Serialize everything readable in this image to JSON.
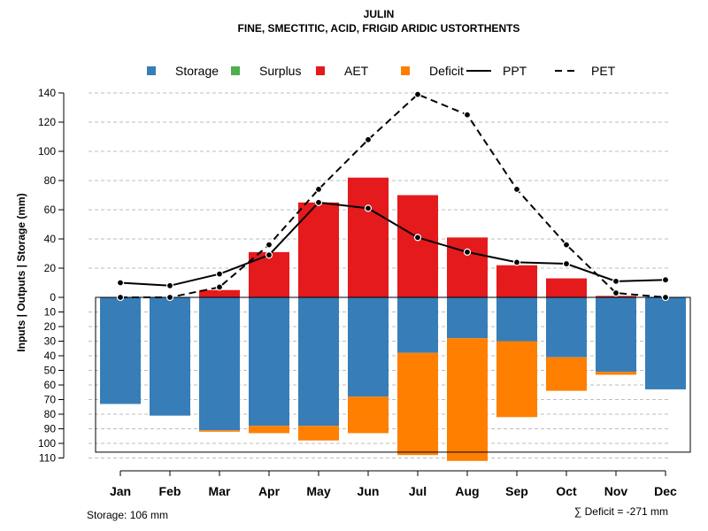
{
  "chart_data": {
    "type": "bar",
    "title": "JULIN",
    "subtitle": "FINE, SMECTITIC, ACID, FRIGID ARIDIC USTORTHENTS",
    "ylabel": "Inputs | Outputs | Storage    (mm)",
    "categories": [
      "Jan",
      "Feb",
      "Mar",
      "Apr",
      "May",
      "Jun",
      "Jul",
      "Aug",
      "Sep",
      "Oct",
      "Nov",
      "Dec"
    ],
    "ylim_top": [
      0,
      140
    ],
    "ylim_bottom": [
      0,
      110
    ],
    "yticks_top": [
      "0",
      "20",
      "40",
      "60",
      "80",
      "100",
      "120",
      "140"
    ],
    "yticks_bottom": [
      "10",
      "20",
      "30",
      "40",
      "50",
      "60",
      "70",
      "80",
      "90",
      "100",
      "110"
    ],
    "grid": true,
    "legend_position": "top",
    "legend": [
      {
        "name": "Storage",
        "color": "#377EB8",
        "kind": "square"
      },
      {
        "name": "Surplus",
        "color": "#4DAF4A",
        "kind": "square"
      },
      {
        "name": "AET",
        "color": "#E41A1C",
        "kind": "square"
      },
      {
        "name": "Deficit",
        "color": "#FF7F00",
        "kind": "square"
      },
      {
        "name": "PPT",
        "color": "#000000",
        "kind": "solid-line"
      },
      {
        "name": "PET",
        "color": "#000000",
        "kind": "dashed-line"
      }
    ],
    "series": [
      {
        "name": "AET",
        "values": [
          0,
          0,
          5,
          31,
          65,
          82,
          70,
          41,
          22,
          13,
          1,
          0
        ]
      },
      {
        "name": "Storage",
        "values": [
          73,
          81,
          91,
          88,
          88,
          68,
          38,
          28,
          30,
          41,
          51,
          63
        ]
      },
      {
        "name": "Deficit",
        "values": [
          0,
          0,
          1,
          5,
          10,
          25,
          70,
          84,
          52,
          23,
          2,
          0
        ]
      },
      {
        "name": "Surplus",
        "values": [
          0,
          0,
          0,
          0,
          0,
          0,
          0,
          0,
          0,
          0,
          0,
          0
        ]
      },
      {
        "name": "PPT",
        "values": [
          10,
          8,
          16,
          29,
          65,
          61,
          41,
          31,
          24,
          23,
          11,
          12
        ]
      },
      {
        "name": "PET",
        "values": [
          0,
          0,
          7,
          36,
          74,
          108,
          139,
          125,
          74,
          36,
          3,
          0
        ]
      }
    ],
    "storage_capacity": 106,
    "footnote_left": "Storage: 106 mm",
    "footnote_right": "∑ Deficit = -271 mm"
  }
}
